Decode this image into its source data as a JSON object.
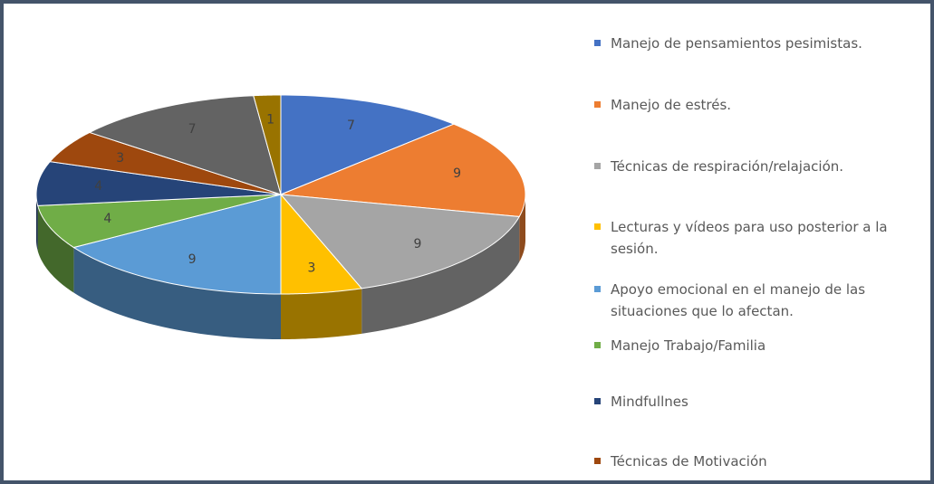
{
  "chart_data": {
    "type": "pie",
    "categories": [
      "Manejo de pensamientos pesimistas.",
      "Manejo de estrés.",
      "Técnicas de respiración/relajación.",
      "Lecturas y vídeos para uso posterior a la sesión.",
      "Apoyo emocional en el manejo de las situaciones que lo afectan.",
      "Manejo Trabajo/Familia",
      "Mindfullnes",
      "Técnicas de Motivación",
      null,
      null
    ],
    "values": [
      7,
      9,
      9,
      3,
      9,
      4,
      4,
      3,
      7,
      1
    ],
    "colors": [
      "#4472c4",
      "#ed7d31",
      "#a5a5a5",
      "#ffc000",
      "#5b9bd5",
      "#70ad47",
      "#264478",
      "#9e480e",
      "#636363",
      "#997300"
    ],
    "legend": "right"
  }
}
